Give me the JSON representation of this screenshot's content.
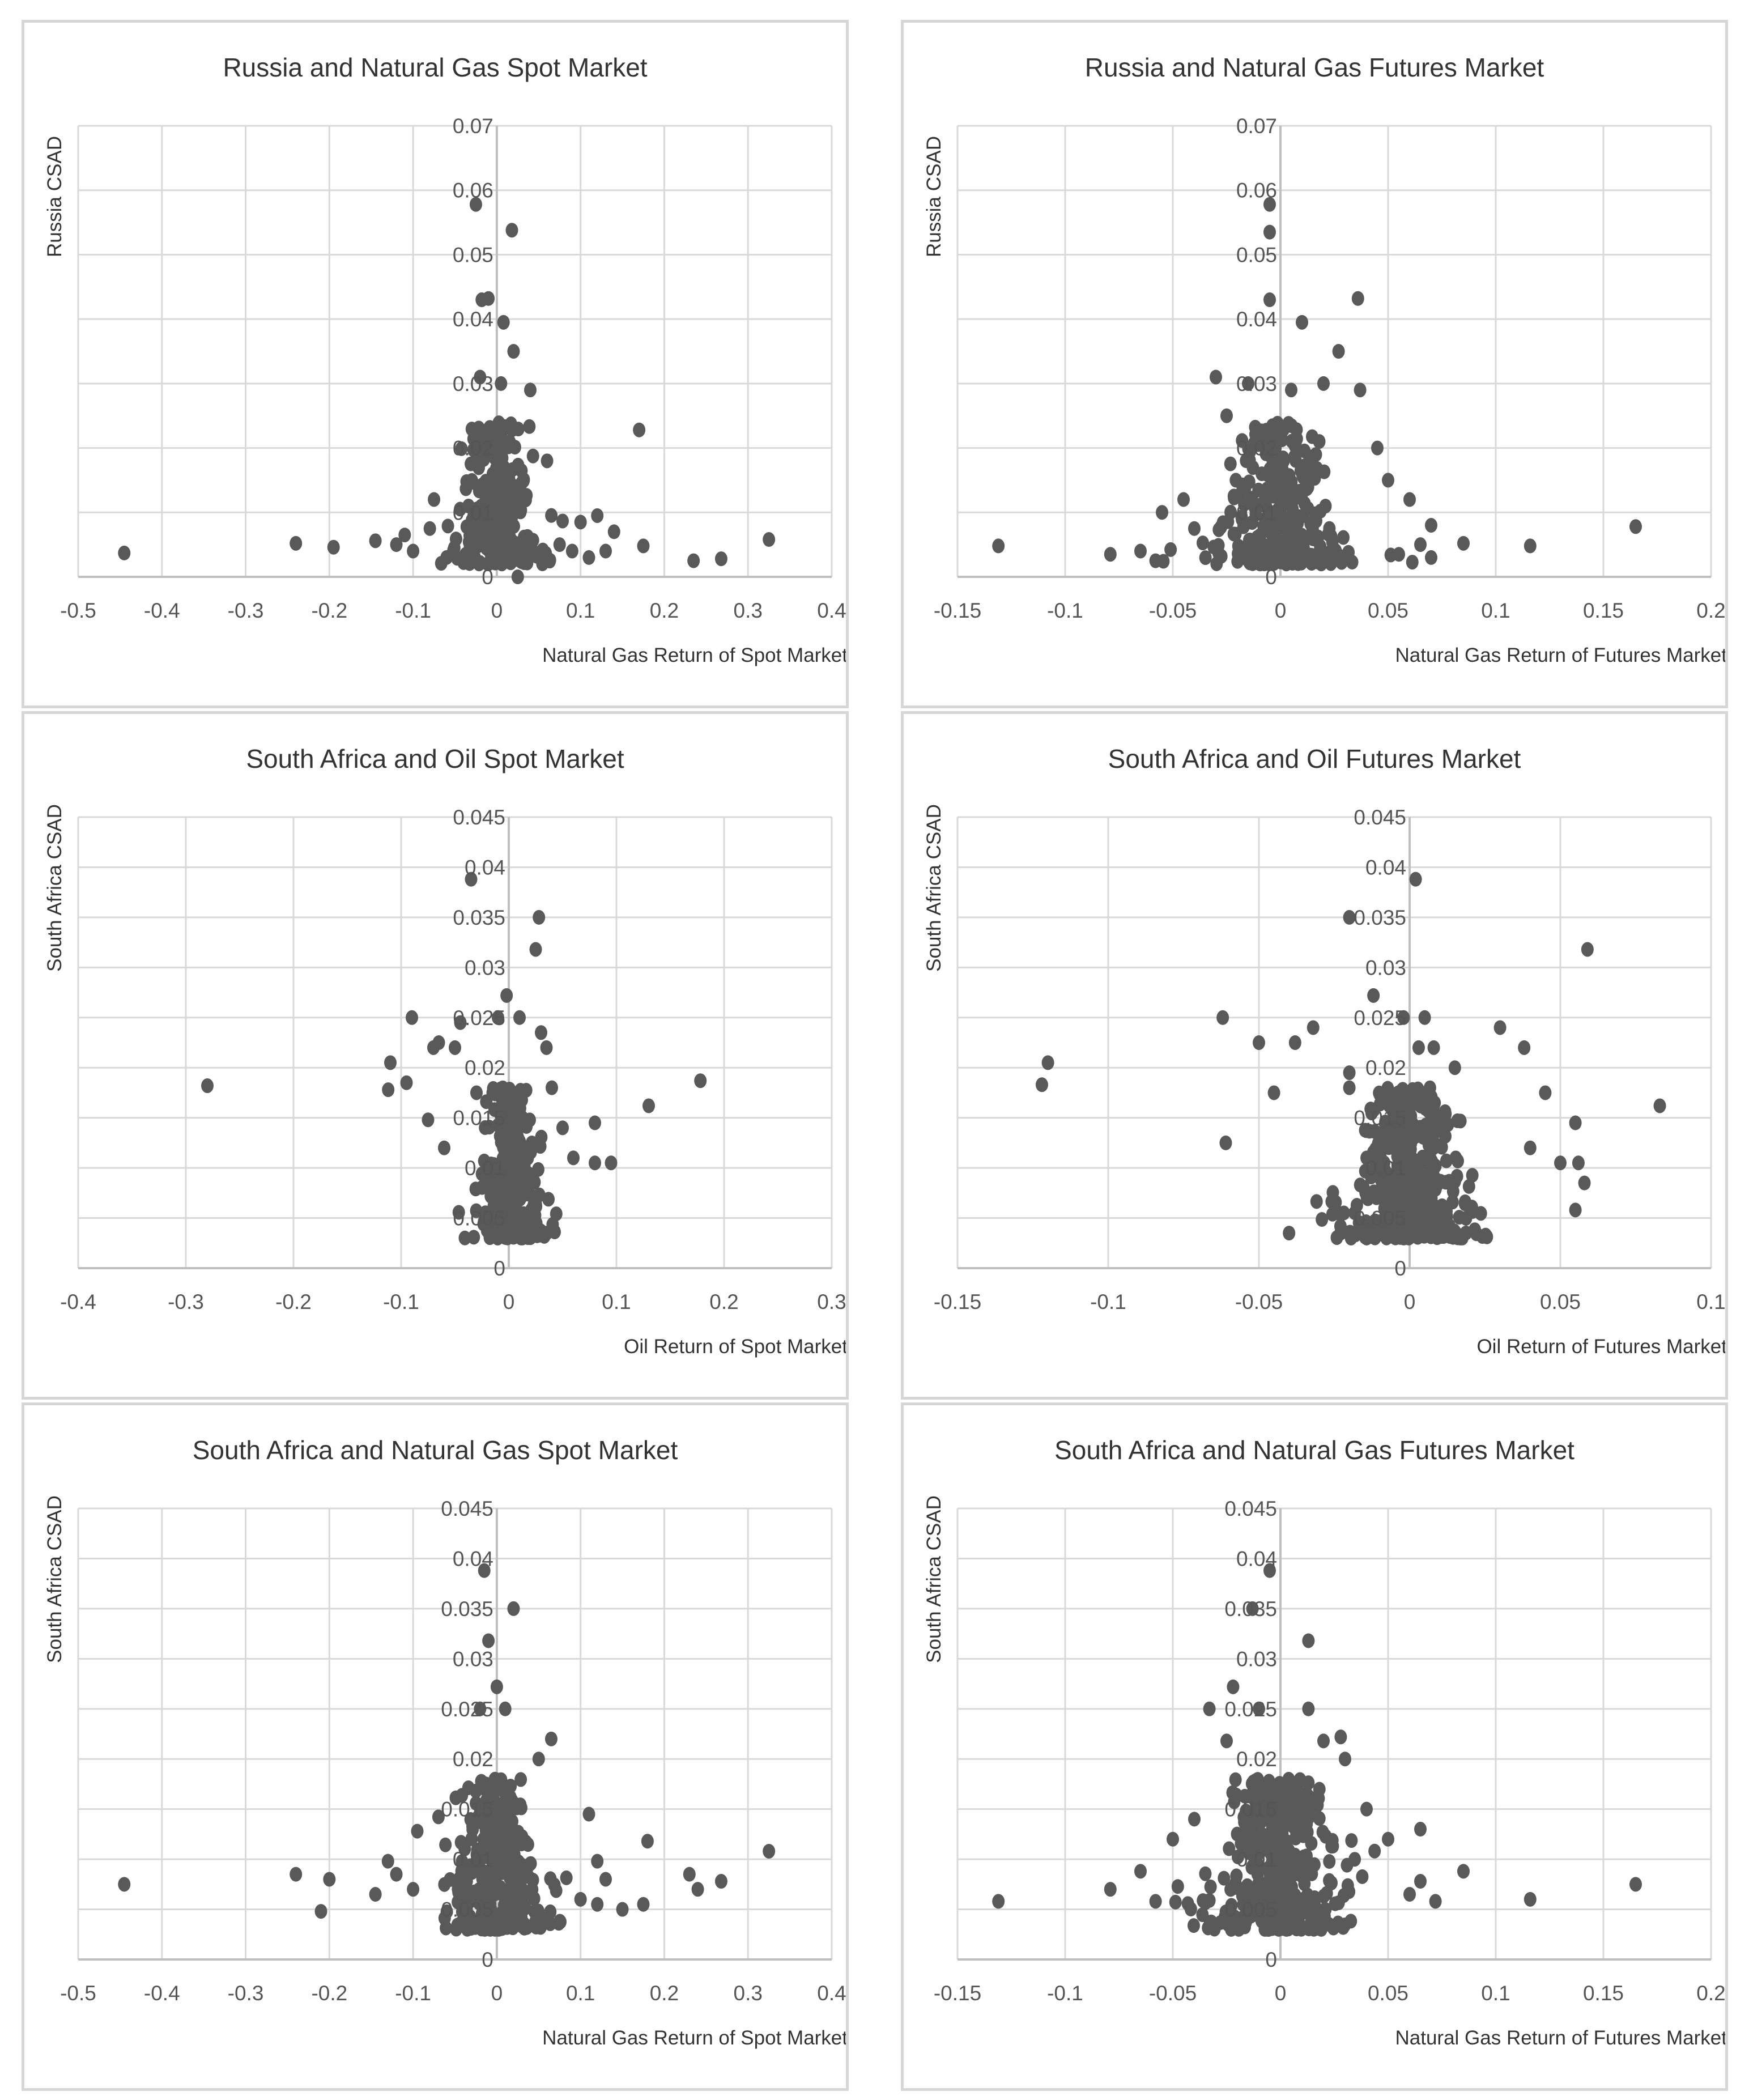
{
  "chart_data": [
    {
      "type": "scatter",
      "title": "Russia and Natural Gas Spot Market",
      "xlabel": "Natural Gas Return of Spot Market",
      "ylabel": "Russia CSAD",
      "xlim": [
        -0.5,
        0.4
      ],
      "xticks": [
        -0.5,
        -0.4,
        -0.3,
        -0.2,
        -0.1,
        0,
        0.1,
        0.2,
        0.3,
        0.4
      ],
      "xtick_labels": [
        "-0.5",
        "-0.4",
        "-0.3",
        "-0.2",
        "-0.1",
        "0",
        "0.1",
        "0.2",
        "0.3",
        "0.4"
      ],
      "ylim": [
        0,
        0.07
      ],
      "yticks": [
        0,
        0.01,
        0.02,
        0.03,
        0.04,
        0.05,
        0.06,
        0.07
      ],
      "ytick_labels": [
        "0",
        "0.01",
        "0.02",
        "0.03",
        "0.04",
        "0.05",
        "0.06",
        "0.07"
      ],
      "grid": true,
      "cluster": {
        "cx": 0.0,
        "sx": 0.035,
        "ymin": 0.002,
        "ymax": 0.024,
        "n": 260
      },
      "points": [
        [
          -0.445,
          0.0037
        ],
        [
          -0.24,
          0.0052
        ],
        [
          -0.195,
          0.0046
        ],
        [
          -0.145,
          0.0056
        ],
        [
          -0.12,
          0.005
        ],
        [
          -0.08,
          0.0075
        ],
        [
          -0.075,
          0.012
        ],
        [
          -0.025,
          0.0578
        ],
        [
          0.018,
          0.0538
        ],
        [
          -0.01,
          0.0432
        ],
        [
          -0.018,
          0.043
        ],
        [
          0.008,
          0.0395
        ],
        [
          0.02,
          0.035
        ],
        [
          0.04,
          0.029
        ],
        [
          0.005,
          0.03
        ],
        [
          -0.02,
          0.031
        ],
        [
          0.17,
          0.0228
        ],
        [
          0.12,
          0.0095
        ],
        [
          0.1,
          0.0085
        ],
        [
          0.14,
          0.007
        ],
        [
          0.175,
          0.0048
        ],
        [
          0.235,
          0.0025
        ],
        [
          0.268,
          0.0028
        ],
        [
          0.325,
          0.0058
        ],
        [
          0.025,
          0.0
        ],
        [
          0.06,
          0.018
        ],
        [
          0.075,
          0.005
        ],
        [
          0.09,
          0.004
        ],
        [
          0.11,
          0.003
        ],
        [
          0.13,
          0.004
        ],
        [
          -0.1,
          0.004
        ],
        [
          -0.11,
          0.0065
        ],
        [
          -0.06,
          0.003
        ]
      ]
    },
    {
      "type": "scatter",
      "title": "Russia and Natural Gas Futures Market",
      "xlabel": "Natural Gas Return of Futures Market",
      "ylabel": "Russia CSAD",
      "xlim": [
        -0.15,
        0.2
      ],
      "xticks": [
        -0.15,
        -0.1,
        -0.05,
        0,
        0.05,
        0.1,
        0.15,
        0.2
      ],
      "xtick_labels": [
        "-0.15",
        "-0.1",
        "-0.05",
        "0",
        "0.05",
        "0.1",
        "0.15",
        "0.2"
      ],
      "ylim": [
        0,
        0.07
      ],
      "yticks": [
        0,
        0.01,
        0.02,
        0.03,
        0.04,
        0.05,
        0.06,
        0.07
      ],
      "ytick_labels": [
        "0",
        "0.01",
        "0.02",
        "0.03",
        "0.04",
        "0.05",
        "0.06",
        "0.07"
      ],
      "grid": true,
      "cluster": {
        "cx": 0.0,
        "sx": 0.018,
        "ymin": 0.002,
        "ymax": 0.024,
        "n": 300
      },
      "points": [
        [
          -0.131,
          0.0048
        ],
        [
          -0.079,
          0.0035
        ],
        [
          -0.065,
          0.004
        ],
        [
          -0.055,
          0.01
        ],
        [
          -0.045,
          0.012
        ],
        [
          -0.04,
          0.0075
        ],
        [
          -0.03,
          0.031
        ],
        [
          -0.025,
          0.025
        ],
        [
          -0.015,
          0.03
        ],
        [
          -0.005,
          0.0578
        ],
        [
          -0.005,
          0.0535
        ],
        [
          -0.005,
          0.043
        ],
        [
          0.01,
          0.0395
        ],
        [
          0.036,
          0.0432
        ],
        [
          0.027,
          0.035
        ],
        [
          0.037,
          0.029
        ],
        [
          0.02,
          0.03
        ],
        [
          0.005,
          0.029
        ],
        [
          0.05,
          0.015
        ],
        [
          0.06,
          0.012
        ],
        [
          0.065,
          0.005
        ],
        [
          0.07,
          0.008
        ],
        [
          0.085,
          0.0052
        ],
        [
          0.116,
          0.0048
        ],
        [
          0.165,
          0.0078
        ],
        [
          0.055,
          0.0035
        ],
        [
          0.07,
          0.003
        ],
        [
          -0.058,
          0.0025
        ],
        [
          0.045,
          0.02
        ],
        [
          -0.01,
          0.021
        ]
      ]
    },
    {
      "type": "scatter",
      "title": "South Africa and Oil Spot Market",
      "xlabel": "Oil Return of Spot Market",
      "ylabel": "South Africa CSAD",
      "xlim": [
        -0.4,
        0.3
      ],
      "xticks": [
        -0.4,
        -0.3,
        -0.2,
        -0.1,
        0,
        0.1,
        0.2,
        0.3
      ],
      "xtick_labels": [
        "-0.4",
        "-0.3",
        "-0.2",
        "-0.1",
        "0",
        "0.1",
        "0.2",
        "0.3"
      ],
      "ylim": [
        0,
        0.045
      ],
      "yticks": [
        0,
        0.005,
        0.01,
        0.015,
        0.02,
        0.025,
        0.03,
        0.035,
        0.04,
        0.045
      ],
      "ytick_labels": [
        "0",
        "0.005",
        "0.01",
        "0.015",
        "0.02",
        "0.025",
        "0.03",
        "0.035",
        "0.04",
        "0.045"
      ],
      "grid": true,
      "cluster": {
        "cx": 0.0,
        "sx": 0.02,
        "ymin": 0.003,
        "ymax": 0.018,
        "n": 280
      },
      "points": [
        [
          -0.28,
          0.0182
        ],
        [
          -0.11,
          0.0205
        ],
        [
          -0.112,
          0.0178
        ],
        [
          -0.095,
          0.0185
        ],
        [
          -0.09,
          0.025
        ],
        [
          -0.07,
          0.022
        ],
        [
          -0.065,
          0.0225
        ],
        [
          -0.05,
          0.022
        ],
        [
          -0.045,
          0.0245
        ],
        [
          -0.035,
          0.0388
        ],
        [
          -0.03,
          0.0175
        ],
        [
          -0.015,
          0.0175
        ],
        [
          0.025,
          0.0318
        ],
        [
          0.028,
          0.035
        ],
        [
          -0.002,
          0.0272
        ],
        [
          -0.01,
          0.025
        ],
        [
          0.01,
          0.025
        ],
        [
          0.03,
          0.0235
        ],
        [
          0.035,
          0.022
        ],
        [
          0.04,
          0.018
        ],
        [
          0.05,
          0.014
        ],
        [
          0.08,
          0.0145
        ],
        [
          0.08,
          0.0105
        ],
        [
          0.095,
          0.0105
        ],
        [
          0.13,
          0.0162
        ],
        [
          0.178,
          0.0187
        ],
        [
          -0.075,
          0.0148
        ],
        [
          -0.06,
          0.012
        ],
        [
          0.06,
          0.011
        ]
      ]
    },
    {
      "type": "scatter",
      "title": "South Africa and Oil Futures Market",
      "xlabel": "Oil Return of Futures Market",
      "ylabel": "South Africa CSAD",
      "xlim": [
        -0.15,
        0.1
      ],
      "xticks": [
        -0.15,
        -0.1,
        -0.05,
        0,
        0.05,
        0.1
      ],
      "xtick_labels": [
        "-0.15",
        "-0.1",
        "-0.05",
        "0",
        "0.05",
        "0.1"
      ],
      "ylim": [
        0,
        0.045
      ],
      "yticks": [
        0,
        0.005,
        0.01,
        0.015,
        0.02,
        0.025,
        0.03,
        0.035,
        0.04,
        0.045
      ],
      "ytick_labels": [
        "0",
        "0.005",
        "0.01",
        "0.015",
        "0.02",
        "0.025",
        "0.03",
        "0.035",
        "0.04",
        "0.045"
      ],
      "grid": true,
      "cluster": {
        "cx": 0.0,
        "sx": 0.014,
        "ymin": 0.003,
        "ymax": 0.018,
        "n": 420
      },
      "points": [
        [
          -0.12,
          0.0205
        ],
        [
          -0.122,
          0.0183
        ],
        [
          -0.062,
          0.025
        ],
        [
          -0.061,
          0.0125
        ],
        [
          -0.05,
          0.0225
        ],
        [
          -0.045,
          0.0175
        ],
        [
          -0.038,
          0.0225
        ],
        [
          -0.032,
          0.024
        ],
        [
          -0.02,
          0.035
        ],
        [
          -0.02,
          0.0195
        ],
        [
          -0.02,
          0.018
        ],
        [
          -0.012,
          0.0272
        ],
        [
          -0.002,
          0.025
        ],
        [
          0.002,
          0.0388
        ],
        [
          0.005,
          0.025
        ],
        [
          0.003,
          0.022
        ],
        [
          0.008,
          0.022
        ],
        [
          0.015,
          0.02
        ],
        [
          0.03,
          0.024
        ],
        [
          0.038,
          0.022
        ],
        [
          0.045,
          0.0175
        ],
        [
          0.055,
          0.0145
        ],
        [
          0.056,
          0.0105
        ],
        [
          0.058,
          0.0085
        ],
        [
          0.055,
          0.0058
        ],
        [
          0.059,
          0.0318
        ],
        [
          0.083,
          0.0162
        ],
        [
          0.05,
          0.0105
        ],
        [
          -0.04,
          0.0035
        ],
        [
          0.04,
          0.012
        ]
      ]
    },
    {
      "type": "scatter",
      "title": "South Africa and Natural Gas Spot Market",
      "xlabel": "Natural Gas Return of Spot Market",
      "ylabel": "South Africa CSAD",
      "xlim": [
        -0.5,
        0.4
      ],
      "xticks": [
        -0.5,
        -0.4,
        -0.3,
        -0.2,
        -0.1,
        0,
        0.1,
        0.2,
        0.3,
        0.4
      ],
      "xtick_labels": [
        "-0.5",
        "-0.4",
        "-0.3",
        "-0.2",
        "-0.1",
        "0",
        "0.1",
        "0.2",
        "0.3",
        "0.4"
      ],
      "ylim": [
        0,
        0.045
      ],
      "yticks": [
        0,
        0.005,
        0.01,
        0.015,
        0.02,
        0.025,
        0.03,
        0.035,
        0.04,
        0.045
      ],
      "ytick_labels": [
        "0",
        "0.005",
        "0.01",
        "0.015",
        "0.02",
        "0.025",
        "0.03",
        "0.035",
        "0.04",
        "0.045"
      ],
      "grid": true,
      "cluster": {
        "cx": 0.0,
        "sx": 0.035,
        "ymin": 0.003,
        "ymax": 0.018,
        "n": 320
      },
      "points": [
        [
          -0.445,
          0.0075
        ],
        [
          -0.24,
          0.0085
        ],
        [
          -0.21,
          0.0048
        ],
        [
          -0.2,
          0.008
        ],
        [
          -0.145,
          0.0065
        ],
        [
          -0.13,
          0.0098
        ],
        [
          -0.12,
          0.0085
        ],
        [
          -0.1,
          0.007
        ],
        [
          -0.095,
          0.0128
        ],
        [
          -0.015,
          0.0388
        ],
        [
          -0.01,
          0.0318
        ],
        [
          0.02,
          0.035
        ],
        [
          0.0,
          0.0272
        ],
        [
          -0.02,
          0.025
        ],
        [
          0.01,
          0.025
        ],
        [
          0.065,
          0.022
        ],
        [
          0.05,
          0.02
        ],
        [
          0.11,
          0.0145
        ],
        [
          0.12,
          0.0098
        ],
        [
          0.13,
          0.008
        ],
        [
          0.15,
          0.005
        ],
        [
          0.175,
          0.0055
        ],
        [
          0.18,
          0.0118
        ],
        [
          0.23,
          0.0085
        ],
        [
          0.24,
          0.007
        ],
        [
          0.268,
          0.0078
        ],
        [
          0.325,
          0.0108
        ],
        [
          0.12,
          0.0055
        ],
        [
          0.1,
          0.006
        ]
      ]
    },
    {
      "type": "scatter",
      "title": "South Africa and Natural Gas Futures Market",
      "xlabel": "Natural Gas Return of Futures Market",
      "ylabel": "South Africa CSAD",
      "xlim": [
        -0.15,
        0.2
      ],
      "xticks": [
        -0.15,
        -0.1,
        -0.05,
        0,
        0.05,
        0.1,
        0.15,
        0.2
      ],
      "xtick_labels": [
        "-0.15",
        "-0.1",
        "-0.05",
        "0",
        "0.05",
        "0.1",
        "0.15",
        "0.2"
      ],
      "ylim": [
        0,
        0.045
      ],
      "yticks": [
        0,
        0.005,
        0.01,
        0.015,
        0.02,
        0.025,
        0.03,
        0.035,
        0.04,
        0.045
      ],
      "ytick_labels": [
        "0",
        "0.005",
        "0.01",
        "0.015",
        "0.02",
        "0.025",
        "0.03",
        "0.035",
        "0.04",
        "0.045"
      ],
      "grid": true,
      "cluster": {
        "cx": 0.0,
        "sx": 0.02,
        "ymin": 0.003,
        "ymax": 0.018,
        "n": 380
      },
      "points": [
        [
          -0.131,
          0.0058
        ],
        [
          -0.079,
          0.007
        ],
        [
          -0.065,
          0.0088
        ],
        [
          -0.058,
          0.0058
        ],
        [
          -0.05,
          0.012
        ],
        [
          -0.04,
          0.014
        ],
        [
          -0.033,
          0.025
        ],
        [
          -0.025,
          0.0218
        ],
        [
          -0.022,
          0.0272
        ],
        [
          -0.013,
          0.035
        ],
        [
          -0.005,
          0.0388
        ],
        [
          0.013,
          0.0318
        ],
        [
          0.013,
          0.025
        ],
        [
          0.02,
          0.0218
        ],
        [
          0.028,
          0.0222
        ],
        [
          0.03,
          0.02
        ],
        [
          0.04,
          0.015
        ],
        [
          0.05,
          0.012
        ],
        [
          0.065,
          0.013
        ],
        [
          0.065,
          0.0078
        ],
        [
          0.072,
          0.0058
        ],
        [
          0.085,
          0.0088
        ],
        [
          0.116,
          0.006
        ],
        [
          0.165,
          0.0075
        ],
        [
          -0.01,
          0.025
        ],
        [
          0.06,
          0.0065
        ]
      ]
    }
  ]
}
